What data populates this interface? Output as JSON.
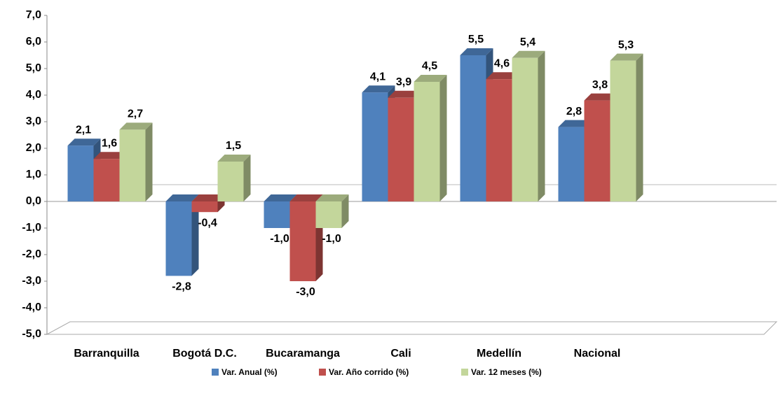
{
  "chart_data": {
    "type": "bar",
    "categories": [
      "Barranquilla",
      "Bogotá D.C.",
      "Bucaramanga",
      "Cali",
      "Medellín",
      "Nacional"
    ],
    "series": [
      {
        "name": "Var. Anual (%)",
        "color": "#4f81bd",
        "values": [
          2.1,
          -2.8,
          -1.0,
          4.1,
          5.5,
          2.8
        ],
        "value_labels": [
          "2,1",
          "-2,8",
          "-1,0",
          "4,1",
          "5,5",
          "2,8"
        ]
      },
      {
        "name": "Var. Año corrido (%)",
        "color": "#c0504d",
        "values": [
          1.6,
          -0.4,
          -3.0,
          3.9,
          4.6,
          3.8
        ],
        "value_labels": [
          "1,6",
          "-0,4",
          "-3,0",
          "3,9",
          "4,6",
          "3,8"
        ]
      },
      {
        "name": "Var. 12 meses (%)",
        "color": "#c3d69b",
        "values": [
          2.7,
          1.5,
          -1.0,
          4.5,
          5.4,
          5.3
        ],
        "value_labels": [
          "2,7",
          "1,5",
          "-1,0",
          "4,5",
          "5,4",
          "5,3"
        ]
      }
    ],
    "ylim": [
      -5,
      7
    ],
    "yticks": [
      {
        "value": -5,
        "label": "-5,0"
      },
      {
        "value": -4,
        "label": "-4,0"
      },
      {
        "value": -3,
        "label": "-3,0"
      },
      {
        "value": -2,
        "label": "-2,0"
      },
      {
        "value": -1,
        "label": "-1,0"
      },
      {
        "value": 0,
        "label": "0,0"
      },
      {
        "value": 1,
        "label": "1,0"
      },
      {
        "value": 2,
        "label": "2,0"
      },
      {
        "value": 3,
        "label": "3,0"
      },
      {
        "value": 4,
        "label": "4,0"
      },
      {
        "value": 5,
        "label": "5,0"
      },
      {
        "value": 6,
        "label": "6,0"
      },
      {
        "value": 7,
        "label": "7,0"
      }
    ],
    "legend": "bottom"
  }
}
